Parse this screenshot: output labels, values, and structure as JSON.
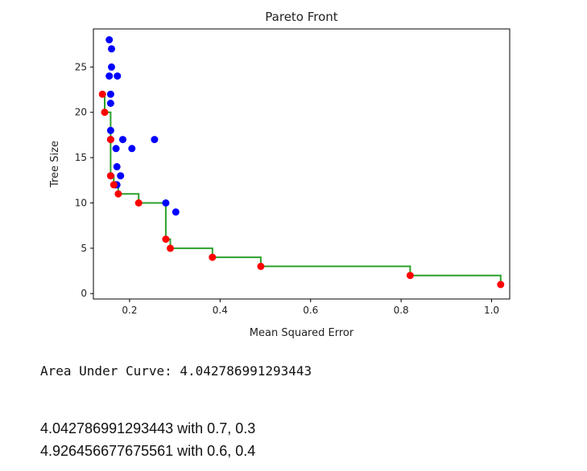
{
  "output": {
    "auc_line": "Area Under Curve: 4.042786991293443",
    "results": [
      "4.042786991293443 with 0.7, 0.3",
      "4.926456677675561 with 0.6, 0.4"
    ]
  },
  "chart_data": {
    "type": "scatter",
    "title": "Pareto Front",
    "xlabel": "Mean Squared Error",
    "ylabel": "Tree Size",
    "xlim": [
      0.12,
      1.04
    ],
    "ylim": [
      -0.6,
      29.2
    ],
    "xticks": [
      0.2,
      0.4,
      0.6,
      0.8,
      1.0
    ],
    "xtick_labels": [
      "0.2",
      "0.4",
      "0.6",
      "0.8",
      "1.0"
    ],
    "yticks": [
      0,
      5,
      10,
      15,
      20,
      25
    ],
    "ytick_labels": [
      "0",
      "5",
      "10",
      "15",
      "20",
      "25"
    ],
    "grid": false,
    "series": [
      {
        "role": "population",
        "color": "#0000ff",
        "points": [
          [
            0.155,
            28
          ],
          [
            0.16,
            27
          ],
          [
            0.16,
            25
          ],
          [
            0.155,
            24
          ],
          [
            0.173,
            24
          ],
          [
            0.158,
            22
          ],
          [
            0.158,
            21
          ],
          [
            0.158,
            18
          ],
          [
            0.158,
            17
          ],
          [
            0.185,
            17
          ],
          [
            0.255,
            17
          ],
          [
            0.17,
            16
          ],
          [
            0.205,
            16
          ],
          [
            0.172,
            14
          ],
          [
            0.158,
            13
          ],
          [
            0.18,
            13
          ],
          [
            0.168,
            12
          ],
          [
            0.172,
            12
          ],
          [
            0.28,
            10
          ],
          [
            0.302,
            9
          ]
        ]
      },
      {
        "role": "pareto-front",
        "color": "#ff0000",
        "points": [
          [
            0.14,
            22
          ],
          [
            0.145,
            20
          ],
          [
            0.158,
            17
          ],
          [
            0.158,
            13
          ],
          [
            0.165,
            12
          ],
          [
            0.175,
            11
          ],
          [
            0.22,
            10
          ],
          [
            0.28,
            6
          ],
          [
            0.29,
            5
          ],
          [
            0.383,
            4
          ],
          [
            0.49,
            3
          ],
          [
            0.82,
            2
          ],
          [
            1.02,
            1
          ]
        ]
      }
    ],
    "step_line": {
      "color": "#2ca02c",
      "points": [
        [
          0.14,
          22
        ],
        [
          0.145,
          22
        ],
        [
          0.145,
          20
        ],
        [
          0.158,
          20
        ],
        [
          0.158,
          17
        ],
        [
          0.158,
          13
        ],
        [
          0.165,
          13
        ],
        [
          0.165,
          12
        ],
        [
          0.175,
          12
        ],
        [
          0.175,
          11
        ],
        [
          0.22,
          11
        ],
        [
          0.22,
          10
        ],
        [
          0.28,
          10
        ],
        [
          0.28,
          6
        ],
        [
          0.29,
          6
        ],
        [
          0.29,
          5
        ],
        [
          0.383,
          5
        ],
        [
          0.383,
          4
        ],
        [
          0.49,
          4
        ],
        [
          0.49,
          3
        ],
        [
          0.82,
          3
        ],
        [
          0.82,
          2
        ],
        [
          1.02,
          2
        ],
        [
          1.02,
          1
        ]
      ]
    }
  }
}
